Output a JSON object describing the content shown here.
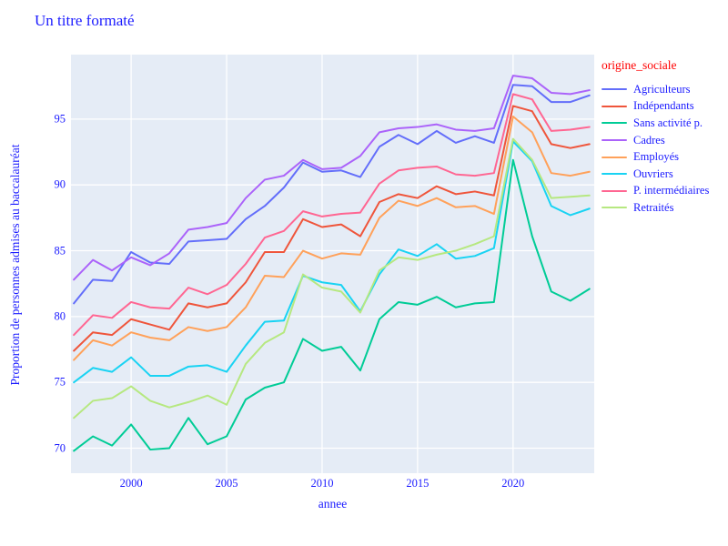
{
  "text_colors": {
    "axis_and_title": "#1a1aff",
    "legend_title": "#ff0000",
    "legend_items": "#1a1aff"
  },
  "plot_bg_color": "#E5ECF6",
  "grid_color": "#ffffff",
  "chart_data": {
    "type": "line",
    "title": "Un titre formaté",
    "xlabel": "annee",
    "ylabel": "Proportion de personnes admises au baccalauréat",
    "legend_title": "origine_sociale",
    "legend_position": "right",
    "grid": true,
    "xlim": [
      1996.85,
      2024.25
    ],
    "ylim": [
      68.1,
      99.9
    ],
    "xticks": [
      2000,
      2005,
      2010,
      2015,
      2020
    ],
    "yticks": [
      70,
      75,
      80,
      85,
      90,
      95
    ],
    "x": [
      1997,
      1998,
      1999,
      2000,
      2001,
      2002,
      2003,
      2004,
      2005,
      2006,
      2007,
      2008,
      2009,
      2010,
      2011,
      2012,
      2013,
      2014,
      2015,
      2016,
      2017,
      2018,
      2019,
      2020,
      2021,
      2022,
      2023,
      2024
    ],
    "series": [
      {
        "name": "Agriculteurs",
        "color": "#636EFA",
        "values": [
          81.0,
          82.8,
          82.7,
          84.9,
          84.1,
          84.0,
          85.7,
          85.8,
          85.9,
          87.4,
          88.4,
          89.8,
          91.7,
          91.0,
          91.1,
          90.6,
          92.9,
          93.8,
          93.1,
          94.1,
          93.2,
          93.7,
          93.2,
          97.6,
          97.5,
          96.3,
          96.3,
          96.8
        ]
      },
      {
        "name": "Indépendants",
        "color": "#EF553B",
        "values": [
          77.4,
          78.8,
          78.6,
          79.8,
          79.4,
          79.0,
          81.0,
          80.7,
          81.0,
          82.6,
          84.9,
          84.9,
          87.4,
          86.8,
          87.0,
          86.1,
          88.7,
          89.3,
          89.0,
          89.9,
          89.3,
          89.5,
          89.2,
          96.0,
          95.6,
          93.1,
          92.8,
          93.1
        ]
      },
      {
        "name": "Sans activité p.",
        "color": "#00CC96",
        "values": [
          69.8,
          70.9,
          70.2,
          71.8,
          69.9,
          70.0,
          72.3,
          70.3,
          70.9,
          73.7,
          74.6,
          75.0,
          78.3,
          77.4,
          77.7,
          75.9,
          79.8,
          81.1,
          80.9,
          81.5,
          80.7,
          81.0,
          81.1,
          91.9,
          86.1,
          81.9,
          81.2,
          82.1
        ]
      },
      {
        "name": "Cadres",
        "color": "#AB63FA",
        "values": [
          82.8,
          84.3,
          83.5,
          84.5,
          83.9,
          84.8,
          86.6,
          86.8,
          87.1,
          89.0,
          90.4,
          90.7,
          91.9,
          91.2,
          91.3,
          92.2,
          94.0,
          94.3,
          94.4,
          94.6,
          94.2,
          94.1,
          94.3,
          98.3,
          98.1,
          97.0,
          96.9,
          97.2
        ]
      },
      {
        "name": "Employés",
        "color": "#FFA15A",
        "values": [
          76.7,
          78.2,
          77.8,
          78.8,
          78.4,
          78.2,
          79.2,
          78.9,
          79.2,
          80.7,
          83.1,
          83.0,
          85.0,
          84.4,
          84.8,
          84.7,
          87.5,
          88.8,
          88.4,
          89.0,
          88.3,
          88.4,
          87.8,
          95.2,
          94.0,
          90.9,
          90.7,
          91.0
        ]
      },
      {
        "name": "Ouvriers",
        "color": "#19D3F3",
        "values": [
          75.0,
          76.1,
          75.8,
          76.9,
          75.5,
          75.5,
          76.2,
          76.3,
          75.8,
          77.8,
          79.6,
          79.7,
          83.1,
          82.6,
          82.4,
          80.4,
          83.2,
          85.1,
          84.6,
          85.5,
          84.4,
          84.6,
          85.2,
          93.3,
          91.8,
          88.4,
          87.7,
          88.2
        ]
      },
      {
        "name": "P. intermédiaires",
        "color": "#FF6692",
        "values": [
          78.6,
          80.1,
          79.9,
          81.1,
          80.7,
          80.6,
          82.2,
          81.7,
          82.4,
          84.0,
          86.0,
          86.5,
          88.0,
          87.6,
          87.8,
          87.9,
          90.1,
          91.1,
          91.3,
          91.4,
          90.8,
          90.7,
          90.9,
          96.9,
          96.5,
          94.1,
          94.2,
          94.4
        ]
      },
      {
        "name": "Retraités",
        "color": "#B6E880",
        "values": [
          72.3,
          73.6,
          73.8,
          74.7,
          73.6,
          73.1,
          73.5,
          74.0,
          73.3,
          76.4,
          78.0,
          78.8,
          83.2,
          82.2,
          81.9,
          80.3,
          83.5,
          84.5,
          84.3,
          84.7,
          85.0,
          85.5,
          86.1,
          93.5,
          91.9,
          89.0,
          89.1,
          89.2
        ]
      }
    ]
  }
}
